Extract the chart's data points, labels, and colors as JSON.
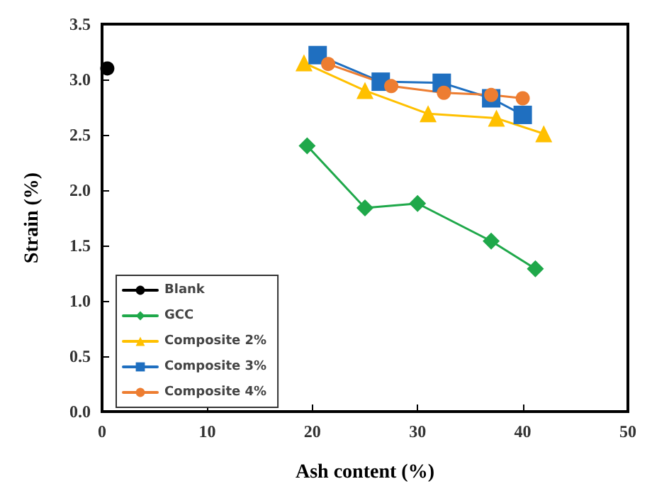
{
  "chart_data": {
    "type": "line",
    "xlabel": "Ash content (%)",
    "ylabel": "Strain (%)",
    "xlim": [
      0,
      50
    ],
    "xticks": [
      0,
      10,
      20,
      30,
      40,
      50
    ],
    "ylim": [
      0,
      3.5
    ],
    "yticks": [
      {
        "value": 0,
        "label": "0.0"
      },
      {
        "value": 0.5,
        "label": "0.5"
      },
      {
        "value": 1,
        "label": "1.0"
      },
      {
        "value": 1.5,
        "label": "1.5"
      },
      {
        "value": 2,
        "label": "2.0"
      },
      {
        "value": 2.5,
        "label": "2.5"
      },
      {
        "value": 3,
        "label": "3.0"
      },
      {
        "value": 3.5,
        "label": "3.5"
      }
    ],
    "grid": false,
    "legend": "bottom left",
    "series": [
      {
        "name": "Blank",
        "color": "#000000",
        "marker": "circle",
        "x": [
          0.5
        ],
        "values": [
          3.1
        ]
      },
      {
        "name": "GCC",
        "color": "#1fa84a",
        "marker": "diamond",
        "x": [
          19.5,
          25,
          30,
          37,
          41.2
        ],
        "values": [
          2.4,
          1.84,
          1.88,
          1.54,
          1.29
        ]
      },
      {
        "name": "Composite 2%",
        "color": "#ffc000",
        "marker": "triangle",
        "x": [
          19.2,
          25,
          31,
          37.5,
          42
        ],
        "values": [
          3.15,
          2.9,
          2.69,
          2.65,
          2.51
        ]
      },
      {
        "name": "Composite 3%",
        "color": "#1f6fc0",
        "marker": "square",
        "x": [
          20.5,
          26.5,
          32.3,
          37,
          40
        ],
        "values": [
          3.22,
          2.98,
          2.97,
          2.83,
          2.68
        ]
      },
      {
        "name": "Composite 4%",
        "color": "#ed7d31",
        "marker": "circle",
        "x": [
          21.5,
          27.5,
          32.5,
          37,
          40
        ],
        "values": [
          3.14,
          2.94,
          2.88,
          2.86,
          2.83
        ]
      }
    ]
  }
}
